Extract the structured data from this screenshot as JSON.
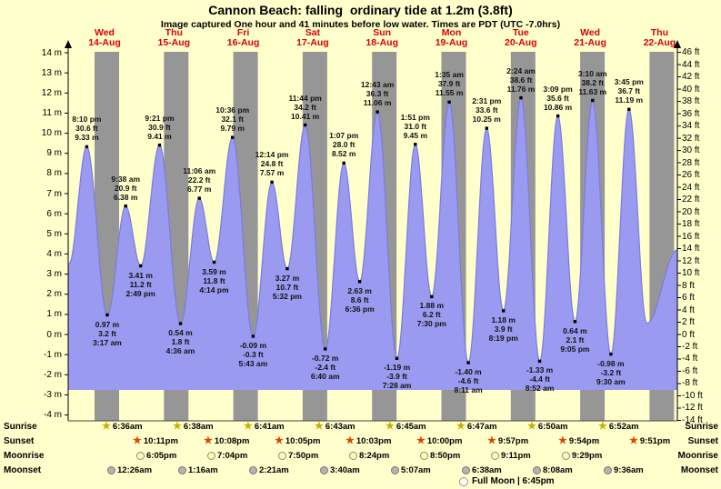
{
  "title": "Cannon Beach: falling  ordinary tide at 1.2m (3.8ft)",
  "subtitle": "Image captured One hour and 41 minutes before low water. Times are PDT (UTC -7.0hrs)",
  "chart_data": {
    "type": "area",
    "description": "9-day tide forecast curve with high/low tide annotations, night-time bands and sun/moon times",
    "days": [
      {
        "weekday": "Wed",
        "date": "14-Aug"
      },
      {
        "weekday": "Thu",
        "date": "15-Aug"
      },
      {
        "weekday": "Fri",
        "date": "16-Aug"
      },
      {
        "weekday": "Sat",
        "date": "17-Aug"
      },
      {
        "weekday": "Sun",
        "date": "18-Aug"
      },
      {
        "weekday": "Mon",
        "date": "19-Aug"
      },
      {
        "weekday": "Tue",
        "date": "20-Aug"
      },
      {
        "weekday": "Wed",
        "date": "21-Aug"
      },
      {
        "weekday": "Thu",
        "date": "22-Aug"
      }
    ],
    "y_left_ticks": [
      "14 m",
      "13 m",
      "12 m",
      "11 m",
      "10 m",
      "9 m",
      "8 m",
      "7 m",
      "6 m",
      "5 m",
      "4 m",
      "3 m",
      "2 m",
      "1 m",
      "0 m",
      "-1 m",
      "-2 m",
      "-3 m",
      "-4 m"
    ],
    "y_right_ticks": [
      "46 ft",
      "44 ft",
      "42 ft",
      "40 ft",
      "38 ft",
      "36 ft",
      "34 ft",
      "32 ft",
      "30 ft",
      "28 ft",
      "26 ft",
      "24 ft",
      "22 ft",
      "20 ft",
      "18 ft",
      "16 ft",
      "14 ft",
      "12 ft",
      "10 ft",
      "8 ft",
      "6 ft",
      "4 ft",
      "2 ft",
      "0 ft",
      "-2 ft",
      "-4 ft",
      "-6 ft",
      "-8 ft",
      "-10 ft",
      "-12 ft",
      "-14 ft"
    ],
    "ylim_m": [
      -4.3,
      14.05
    ],
    "tide_events": [
      {
        "day": "14-Aug",
        "type": "high",
        "time": "8:10 pm",
        "ft": "30.6",
        "m": "9.33",
        "t_hours": 20.17
      },
      {
        "day": "15-Aug",
        "type": "low",
        "time": "3:17 am",
        "ft": "3.2",
        "m": "0.97",
        "t_hours": 27.28
      },
      {
        "day": "15-Aug",
        "type": "high",
        "time": "9:38 am",
        "ft": "20.9",
        "m": "6.38",
        "t_hours": 33.63
      },
      {
        "day": "15-Aug",
        "type": "low",
        "time": "2:49 pm",
        "ft": "11.2",
        "m": "3.41",
        "t_hours": 38.82
      },
      {
        "day": "15-Aug",
        "type": "high",
        "time": "9:21 pm",
        "ft": "30.9",
        "m": "9.41",
        "t_hours": 45.35
      },
      {
        "day": "16-Aug",
        "type": "low",
        "time": "4:36 am",
        "ft": "1.8",
        "m": "0.54",
        "t_hours": 52.6
      },
      {
        "day": "16-Aug",
        "type": "high",
        "time": "11:06 am",
        "ft": "22.2",
        "m": "6.77",
        "t_hours": 59.1
      },
      {
        "day": "16-Aug",
        "type": "low",
        "time": "4:14 pm",
        "ft": "11.8",
        "m": "3.59",
        "t_hours": 64.23
      },
      {
        "day": "16-Aug",
        "type": "high",
        "time": "10:36 pm",
        "ft": "32.1",
        "m": "9.79",
        "t_hours": 70.6
      },
      {
        "day": "17-Aug",
        "type": "low",
        "time": "5:43 am",
        "ft": "-0.3",
        "m": "-0.09",
        "t_hours": 77.72
      },
      {
        "day": "17-Aug",
        "type": "high",
        "time": "12:14 pm",
        "ft": "24.8",
        "m": "7.57",
        "t_hours": 84.23
      },
      {
        "day": "17-Aug",
        "type": "low",
        "time": "5:32 pm",
        "ft": "10.7",
        "m": "3.27",
        "t_hours": 89.53
      },
      {
        "day": "17-Aug",
        "type": "high",
        "time": "11:44 pm",
        "ft": "34.2",
        "m": "10.41",
        "t_hours": 95.73
      },
      {
        "day": "18-Aug",
        "type": "low",
        "time": "6:40 am",
        "ft": "-2.4",
        "m": "-0.72",
        "t_hours": 102.67
      },
      {
        "day": "18-Aug",
        "type": "high",
        "time": "1:07 pm",
        "ft": "28.0",
        "m": "8.52",
        "t_hours": 109.12
      },
      {
        "day": "18-Aug",
        "type": "low",
        "time": "6:36 pm",
        "ft": "8.6",
        "m": "2.63",
        "t_hours": 114.6
      },
      {
        "day": "19-Aug",
        "type": "high",
        "time": "12:43 am",
        "ft": "36.3",
        "m": "11.06",
        "t_hours": 120.72
      },
      {
        "day": "19-Aug",
        "type": "low",
        "time": "7:28 am",
        "ft": "-3.9",
        "m": "-1.19",
        "t_hours": 127.47
      },
      {
        "day": "19-Aug",
        "type": "high",
        "time": "1:51 pm",
        "ft": "31.0",
        "m": "9.45",
        "t_hours": 133.85
      },
      {
        "day": "19-Aug",
        "type": "low",
        "time": "7:30 pm",
        "ft": "6.2",
        "m": "1.88",
        "t_hours": 139.5
      },
      {
        "day": "20-Aug",
        "type": "high",
        "time": "1:35 am",
        "ft": "37.9",
        "m": "11.55",
        "t_hours": 145.58
      },
      {
        "day": "20-Aug",
        "type": "low",
        "time": "8:11 am",
        "ft": "-4.6",
        "m": "-1.40",
        "t_hours": 152.18
      },
      {
        "day": "20-Aug",
        "type": "high",
        "time": "2:31 pm",
        "ft": "33.6",
        "m": "10.25",
        "t_hours": 158.52
      },
      {
        "day": "20-Aug",
        "type": "low",
        "time": "8:19 pm",
        "ft": "3.9",
        "m": "1.18",
        "t_hours": 164.32
      },
      {
        "day": "21-Aug",
        "type": "high",
        "time": "2:24 am",
        "ft": "38.6",
        "m": "11.76",
        "t_hours": 170.4
      },
      {
        "day": "21-Aug",
        "type": "low",
        "time": "8:52 am",
        "ft": "-4.4",
        "m": "-1.33",
        "t_hours": 176.87
      },
      {
        "day": "21-Aug",
        "type": "high",
        "time": "3:09 pm",
        "ft": "35.6",
        "m": "10.86",
        "t_hours": 183.15
      },
      {
        "day": "21-Aug",
        "type": "low",
        "time": "9:05 pm",
        "ft": "2.1",
        "m": "0.64",
        "t_hours": 189.08
      },
      {
        "day": "22-Aug",
        "type": "high",
        "time": "3:10 am",
        "ft": "38.2",
        "m": "11.63",
        "t_hours": 195.17
      },
      {
        "day": "22-Aug",
        "type": "low",
        "time": "9:30 am",
        "ft": "-3.2",
        "m": "-0.98",
        "t_hours": 201.5
      },
      {
        "day": "22-Aug",
        "type": "high",
        "time": "3:45 pm",
        "ft": "36.7",
        "m": "11.19",
        "t_hours": 207.75
      }
    ],
    "curve_edge_events": [
      {
        "t_hours": 8.8,
        "height_m": 6.1
      },
      {
        "t_hours": 14.0,
        "height_m": 3.5
      },
      {
        "t_hours": 213.9,
        "height_m": 0.55
      },
      {
        "t_hours": 224.5,
        "height_m": 4.2
      }
    ],
    "colors": {
      "background": "#ffffcc",
      "night_band": "#969696",
      "tide_fill": "#9a9af0",
      "tide_stroke": "#7b7be0",
      "day_label": "#dd0000",
      "marker": "#000000"
    }
  },
  "astro": {
    "rows": [
      {
        "name": "Sunrise",
        "icon": "sunrise-star",
        "times": [
          "6:36am",
          "6:38am",
          "6:41am",
          "6:43am",
          "6:45am",
          "6:47am",
          "6:50am",
          "6:52am"
        ]
      },
      {
        "name": "Sunset",
        "icon": "sunset-star",
        "times": [
          "10:11pm",
          "10:08pm",
          "10:05pm",
          "10:03pm",
          "10:00pm",
          "9:57pm",
          "9:54pm",
          "9:51pm"
        ]
      },
      {
        "name": "Moonrise",
        "icon": "moonrise-circle",
        "times": [
          "6:05pm",
          "7:04pm",
          "7:50pm",
          "8:24pm",
          "8:50pm",
          "9:11pm",
          "9:29pm"
        ]
      },
      {
        "name": "Moonset",
        "icon": "moonset-circle",
        "times": [
          "12:26am",
          "1:16am",
          "2:21am",
          "3:40am",
          "5:07am",
          "6:38am",
          "8:08am",
          "9:36am"
        ]
      }
    ],
    "full_moon_text": "Full Moon | 6:45pm"
  }
}
